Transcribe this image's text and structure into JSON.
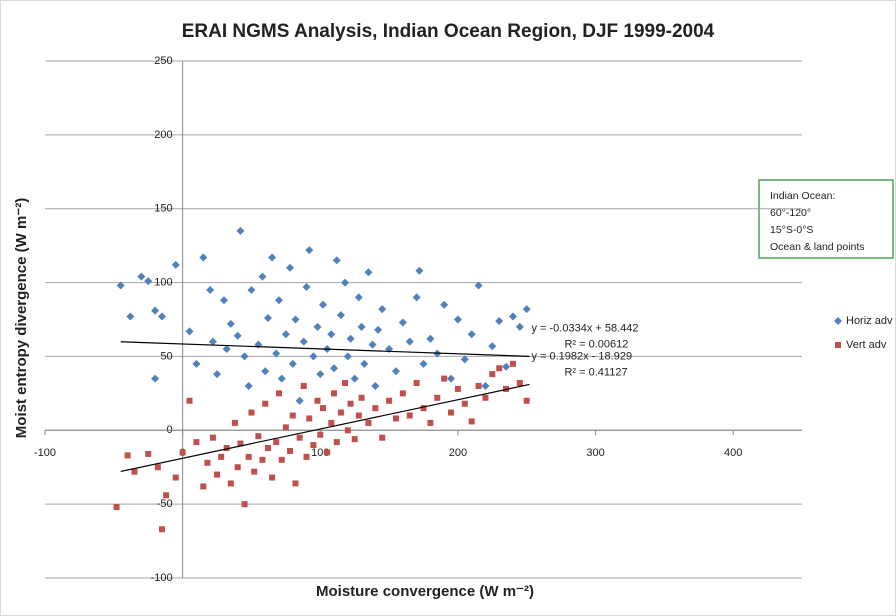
{
  "chart_data": {
    "type": "scatter",
    "title": "ERAI NGMS Analysis, Indian Ocean Region, DJF 1999-2004",
    "x_label": "Moisture convergence (W m⁻²)",
    "y_label": "Moist entropy divergence (W m⁻²)",
    "xlim": [
      -100,
      450
    ],
    "ylim": [
      -100,
      250
    ],
    "xticks": [
      -100,
      0,
      100,
      200,
      300,
      400
    ],
    "yticks": [
      -100,
      -50,
      0,
      50,
      100,
      150,
      200,
      250
    ],
    "grid": true,
    "legend": "right",
    "note": [
      "Indian Ocean:",
      "60°-120°",
      "15°S-0°S",
      "Ocean & land points"
    ],
    "series": [
      {
        "name": "Horiz adv",
        "color": "#4f81bd",
        "marker": "diamond",
        "x": [
          -45,
          -38,
          -30,
          -25,
          -20,
          -15,
          -5,
          -20,
          5,
          10,
          15,
          20,
          22,
          25,
          30,
          32,
          35,
          40,
          42,
          45,
          48,
          50,
          55,
          58,
          60,
          62,
          65,
          68,
          70,
          72,
          75,
          78,
          80,
          82,
          85,
          88,
          90,
          92,
          95,
          98,
          100,
          102,
          105,
          108,
          110,
          112,
          115,
          118,
          120,
          122,
          125,
          128,
          130,
          132,
          135,
          138,
          140,
          142,
          145,
          150,
          155,
          160,
          165,
          170,
          172,
          175,
          180,
          185,
          190,
          195,
          200,
          205,
          210,
          215,
          220,
          225,
          230,
          235,
          240,
          245,
          250
        ],
        "values": [
          98,
          77,
          104,
          101,
          81,
          77,
          112,
          35,
          67,
          45,
          117,
          95,
          60,
          38,
          88,
          55,
          72,
          64,
          135,
          50,
          30,
          95,
          58,
          104,
          40,
          76,
          117,
          52,
          88,
          35,
          65,
          110,
          45,
          75,
          20,
          60,
          97,
          122,
          50,
          70,
          38,
          85,
          55,
          65,
          42,
          115,
          78,
          100,
          50,
          62,
          35,
          90,
          70,
          45,
          107,
          58,
          30,
          68,
          82,
          55,
          40,
          73,
          60,
          90,
          108,
          45,
          62,
          52,
          85,
          35,
          75,
          48,
          65,
          98,
          30,
          57,
          74,
          43,
          77,
          70,
          82
        ],
        "trendline": {
          "slope": -0.0334,
          "intercept": 58.442,
          "xrange": [
            -45,
            252
          ],
          "equation": "y = -0.0334x + 58.442",
          "r2": "R² = 0.00612"
        }
      },
      {
        "name": "Vert adv",
        "color": "#c0504d",
        "marker": "square",
        "x": [
          -48,
          -40,
          -35,
          -25,
          -18,
          -15,
          -12,
          -5,
          0,
          5,
          10,
          15,
          18,
          22,
          25,
          28,
          32,
          35,
          38,
          40,
          42,
          45,
          48,
          50,
          52,
          55,
          58,
          60,
          62,
          65,
          68,
          70,
          72,
          75,
          78,
          80,
          82,
          85,
          88,
          90,
          92,
          95,
          98,
          100,
          102,
          105,
          108,
          110,
          112,
          115,
          118,
          120,
          122,
          125,
          128,
          130,
          135,
          140,
          145,
          150,
          155,
          160,
          165,
          170,
          175,
          180,
          185,
          190,
          195,
          200,
          205,
          210,
          215,
          220,
          225,
          230,
          235,
          240,
          245,
          250
        ],
        "values": [
          -52,
          -17,
          -28,
          -16,
          -25,
          -67,
          -44,
          -32,
          -15,
          20,
          -8,
          -38,
          -22,
          -5,
          -30,
          -18,
          -12,
          -36,
          5,
          -25,
          -9,
          -50,
          -18,
          12,
          -28,
          -4,
          -20,
          18,
          -12,
          -32,
          -8,
          25,
          -20,
          2,
          -14,
          10,
          -36,
          -5,
          30,
          -18,
          8,
          -10,
          20,
          -3,
          15,
          -15,
          5,
          25,
          -8,
          12,
          32,
          0,
          18,
          -6,
          10,
          22,
          5,
          15,
          -5,
          20,
          8,
          25,
          10,
          32,
          15,
          5,
          22,
          35,
          12,
          28,
          18,
          6,
          30,
          22,
          38,
          42,
          28,
          45,
          32,
          20
        ],
        "trendline": {
          "slope": 0.1982,
          "intercept": -18.929,
          "xrange": [
            -45,
            252
          ],
          "equation": "y = 0.1982x - 18.929",
          "r2": "R² = 0.41127"
        }
      }
    ]
  }
}
